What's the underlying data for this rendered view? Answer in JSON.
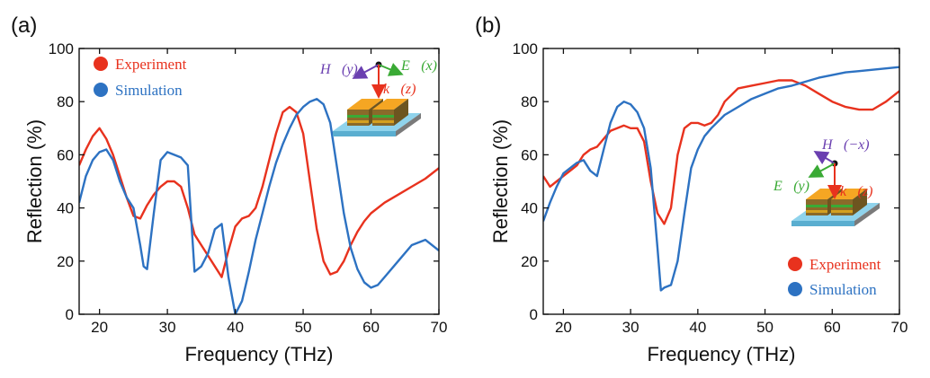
{
  "colors": {
    "experiment": "#e8321e",
    "simulation": "#2d72c2",
    "h_vector": "#6a3fb0",
    "e_vector": "#3aaa35",
    "k_vector": "#e8321e"
  },
  "chart_data": [
    {
      "type": "line",
      "panel_label": "(a)",
      "xlabel": "Frequency (THz)",
      "ylabel": "Reflection (%)",
      "xlim": [
        17,
        70
      ],
      "ylim": [
        0,
        100
      ],
      "xticks": [
        20,
        30,
        40,
        50,
        60,
        70
      ],
      "yticks": [
        0,
        20,
        40,
        60,
        80,
        100
      ],
      "legend_position": "top-left",
      "inset_labels": {
        "h": "H⃗(y)",
        "e": "E⃗(x)",
        "k": "k⃗(z)"
      },
      "series": [
        {
          "name": "Experiment",
          "color": "#e8321e",
          "x": [
            17,
            18,
            19,
            20,
            21,
            22,
            23,
            24,
            25,
            26,
            27,
            28,
            29,
            30,
            31,
            32,
            33,
            34,
            35,
            36,
            37,
            38,
            39,
            40,
            41,
            42,
            43,
            44,
            45,
            46,
            47,
            48,
            49,
            50,
            51,
            52,
            53,
            54,
            55,
            56,
            57,
            58,
            59,
            60,
            62,
            64,
            66,
            68,
            70
          ],
          "y": [
            56,
            62,
            67,
            70,
            66,
            60,
            52,
            44,
            37,
            36,
            41,
            45,
            48,
            50,
            50,
            48,
            40,
            30,
            26,
            22,
            18,
            14,
            24,
            33,
            36,
            37,
            40,
            48,
            58,
            68,
            76,
            78,
            76,
            68,
            50,
            32,
            20,
            15,
            16,
            20,
            26,
            31,
            35,
            38,
            42,
            45,
            48,
            51,
            55
          ]
        },
        {
          "name": "Simulation",
          "color": "#2d72c2",
          "x": [
            17,
            18,
            19,
            20,
            21,
            22,
            23,
            24,
            25,
            26,
            26.5,
            27,
            28,
            29,
            30,
            31,
            32,
            33,
            34,
            35,
            36,
            37,
            38,
            39,
            40,
            41,
            42,
            43,
            44,
            45,
            46,
            47,
            48,
            49,
            50,
            51,
            52,
            53,
            54,
            55,
            56,
            57,
            58,
            59,
            60,
            61,
            62,
            64,
            66,
            68,
            70
          ],
          "y": [
            42,
            52,
            58,
            61,
            62,
            58,
            50,
            44,
            40,
            26,
            18,
            17,
            38,
            58,
            61,
            60,
            59,
            56,
            16,
            18,
            23,
            32,
            34,
            14,
            0,
            5,
            16,
            28,
            38,
            48,
            57,
            64,
            70,
            75,
            78,
            80,
            81,
            79,
            72,
            55,
            38,
            25,
            17,
            12,
            10,
            11,
            14,
            20,
            26,
            28,
            24
          ]
        }
      ]
    },
    {
      "type": "line",
      "panel_label": "(b)",
      "xlabel": "Frequency (THz)",
      "ylabel": "Reflection (%)",
      "xlim": [
        17,
        70
      ],
      "ylim": [
        0,
        100
      ],
      "xticks": [
        20,
        30,
        40,
        50,
        60,
        70
      ],
      "yticks": [
        0,
        20,
        40,
        60,
        80,
        100
      ],
      "legend_position": "bottom-right",
      "inset_labels": {
        "h": "H⃗(−x)",
        "e": "E⃗(y)",
        "k": "k⃗(z)"
      },
      "series": [
        {
          "name": "Experiment",
          "color": "#e8321e",
          "x": [
            17,
            18,
            19,
            20,
            21,
            22,
            23,
            24,
            25,
            26,
            27,
            28,
            29,
            30,
            31,
            32,
            33,
            34,
            35,
            36,
            37,
            38,
            39,
            40,
            41,
            42,
            43,
            44,
            46,
            48,
            50,
            52,
            54,
            56,
            58,
            60,
            62,
            64,
            66,
            68,
            70
          ],
          "y": [
            52,
            48,
            50,
            52,
            54,
            56,
            60,
            62,
            63,
            66,
            69,
            70,
            71,
            70,
            70,
            65,
            50,
            38,
            34,
            40,
            60,
            70,
            72,
            72,
            71,
            72,
            75,
            80,
            85,
            86,
            87,
            88,
            88,
            86,
            83,
            80,
            78,
            77,
            77,
            80,
            84
          ]
        },
        {
          "name": "Simulation",
          "color": "#2d72c2",
          "x": [
            17,
            18,
            19,
            20,
            21,
            22,
            23,
            24,
            25,
            26,
            27,
            28,
            29,
            30,
            31,
            32,
            33,
            34,
            34.5,
            35,
            36,
            37,
            38,
            39,
            40,
            41,
            42,
            44,
            46,
            48,
            50,
            52,
            54,
            56,
            58,
            60,
            62,
            64,
            66,
            68,
            70
          ],
          "y": [
            35,
            42,
            48,
            53,
            55,
            57,
            58,
            54,
            52,
            62,
            72,
            78,
            80,
            79,
            76,
            70,
            55,
            25,
            9,
            10,
            11,
            20,
            38,
            55,
            62,
            67,
            70,
            75,
            78,
            81,
            83,
            85,
            86,
            87.5,
            89,
            90,
            91,
            91.5,
            92,
            92.5,
            93
          ]
        }
      ]
    }
  ]
}
